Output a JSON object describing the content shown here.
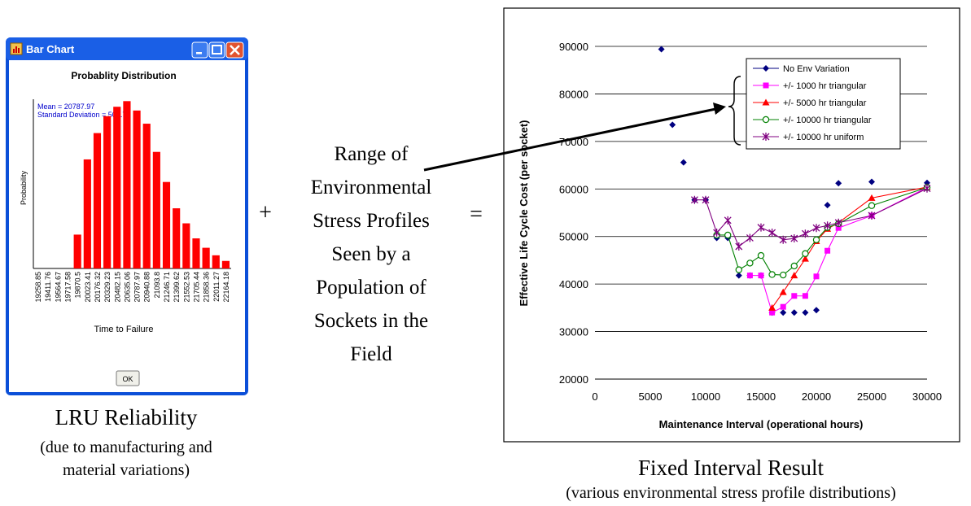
{
  "window": {
    "title": "Bar Chart",
    "ok_label": "OK",
    "minimize_icon": "minimize-icon",
    "maximize_icon": "maximize-icon",
    "close_icon": "close-icon",
    "app_icon": "bar-chart-app-icon"
  },
  "left_caption": {
    "title": "LRU Reliability",
    "line1": "(due to manufacturing and",
    "line2": "material variations)"
  },
  "operators": {
    "plus": "+",
    "equals": "="
  },
  "middle_text": [
    "Range of",
    "Environmental",
    "Stress Profiles",
    "Seen by a",
    "Population of",
    "Sockets in the",
    "Field"
  ],
  "right_caption": {
    "title": "Fixed Interval Result",
    "sub": "(various environmental stress profile distributions)"
  },
  "chart_data": [
    {
      "type": "bar",
      "title": "Probablity Distribution",
      "xlabel": "Time to Failure",
      "ylabel": "Probability",
      "annotations": [
        "Mean = 20787.97",
        "Standard Deviation = 509.71"
      ],
      "categories": [
        "19258.85",
        "19411.76",
        "19564.67",
        "19717.58",
        "19870.5",
        "20023.41",
        "20176.32",
        "20329.23",
        "20482.15",
        "20635.06",
        "20787.97",
        "20940.88",
        "21093.8",
        "21246.71",
        "21399.62",
        "21552.53",
        "21705.44",
        "21858.36",
        "22011.27",
        "22164.18"
      ],
      "values": [
        0,
        0,
        0,
        0,
        18,
        58,
        72,
        81,
        86,
        89,
        84,
        77,
        62,
        46,
        32,
        24,
        16,
        11,
        7,
        4
      ],
      "ylim": [
        0,
        90
      ],
      "colors": {
        "bar": "#ff0000",
        "annotation": "#0000cc"
      }
    },
    {
      "type": "line",
      "title": "",
      "xlabel": "Maintenance Interval (operational hours)",
      "ylabel": "Effective Life Cycle Cost (per socket)",
      "xlim": [
        0,
        30000
      ],
      "ylim": [
        20000,
        90000
      ],
      "xticks": [
        0,
        5000,
        10000,
        15000,
        20000,
        25000,
        30000
      ],
      "yticks": [
        20000,
        30000,
        40000,
        50000,
        60000,
        70000,
        80000,
        90000
      ],
      "grid": "horizontal",
      "legend_position": "top-right",
      "series": [
        {
          "name": "No Env Variation",
          "color": "#000080",
          "marker": "diamond",
          "line": false,
          "points": [
            [
              6000,
              89400
            ],
            [
              7000,
              73500
            ],
            [
              8000,
              65600
            ],
            [
              9000,
              57700
            ],
            [
              10000,
              57700
            ],
            [
              11000,
              49700
            ],
            [
              12000,
              49700
            ],
            [
              13000,
              41800
            ],
            [
              14000,
              41800
            ],
            [
              15000,
              41800
            ],
            [
              16000,
              34000
            ],
            [
              17000,
              34000
            ],
            [
              18000,
              34000
            ],
            [
              19000,
              34000
            ],
            [
              20000,
              34500
            ],
            [
              21000,
              56600
            ],
            [
              22000,
              61200
            ],
            [
              25000,
              61500
            ],
            [
              30000,
              61300
            ]
          ]
        },
        {
          "name": "+/- 1000 hr triangular",
          "color": "#ff00ff",
          "marker": "square",
          "line": true,
          "points": [
            [
              14000,
              41800
            ],
            [
              15000,
              41800
            ],
            [
              16000,
              34000
            ],
            [
              17000,
              35200
            ],
            [
              18000,
              37500
            ],
            [
              19000,
              37500
            ],
            [
              20000,
              41600
            ],
            [
              21000,
              47000
            ],
            [
              22000,
              51800
            ],
            [
              25000,
              54400
            ],
            [
              30000,
              60300
            ]
          ]
        },
        {
          "name": "+/- 5000 hr triangular",
          "color": "#ff0000",
          "marker": "triangle",
          "line": true,
          "points": [
            [
              16000,
              35000
            ],
            [
              17000,
              38300
            ],
            [
              18000,
              41800
            ],
            [
              19000,
              45300
            ],
            [
              20000,
              49000
            ],
            [
              21000,
              51600
            ],
            [
              22000,
              52900
            ],
            [
              25000,
              58100
            ],
            [
              30000,
              60400
            ]
          ]
        },
        {
          "name": "+/- 10000 hr triangular",
          "color": "#008000",
          "marker": "circle",
          "line": true,
          "points": [
            [
              11000,
              50300
            ],
            [
              12000,
              50300
            ],
            [
              13000,
              43000
            ],
            [
              14000,
              44400
            ],
            [
              15000,
              46000
            ],
            [
              16000,
              42000
            ],
            [
              17000,
              41900
            ],
            [
              18000,
              43800
            ],
            [
              19000,
              46400
            ],
            [
              20000,
              49300
            ],
            [
              21000,
              51900
            ],
            [
              22000,
              52700
            ],
            [
              25000,
              56500
            ],
            [
              30000,
              60300
            ]
          ]
        },
        {
          "name": "+/- 10000 hr uniform",
          "color": "#800080",
          "marker": "star",
          "line": true,
          "points": [
            [
              9000,
              57700
            ],
            [
              10000,
              57700
            ],
            [
              11000,
              50800
            ],
            [
              12000,
              53400
            ],
            [
              13000,
              47900
            ],
            [
              14000,
              49700
            ],
            [
              15000,
              51900
            ],
            [
              16000,
              50800
            ],
            [
              17000,
              49300
            ],
            [
              18000,
              49600
            ],
            [
              19000,
              50600
            ],
            [
              20000,
              51800
            ],
            [
              21000,
              52300
            ],
            [
              22000,
              52900
            ],
            [
              25000,
              54400
            ],
            [
              30000,
              60100
            ]
          ]
        }
      ]
    }
  ]
}
